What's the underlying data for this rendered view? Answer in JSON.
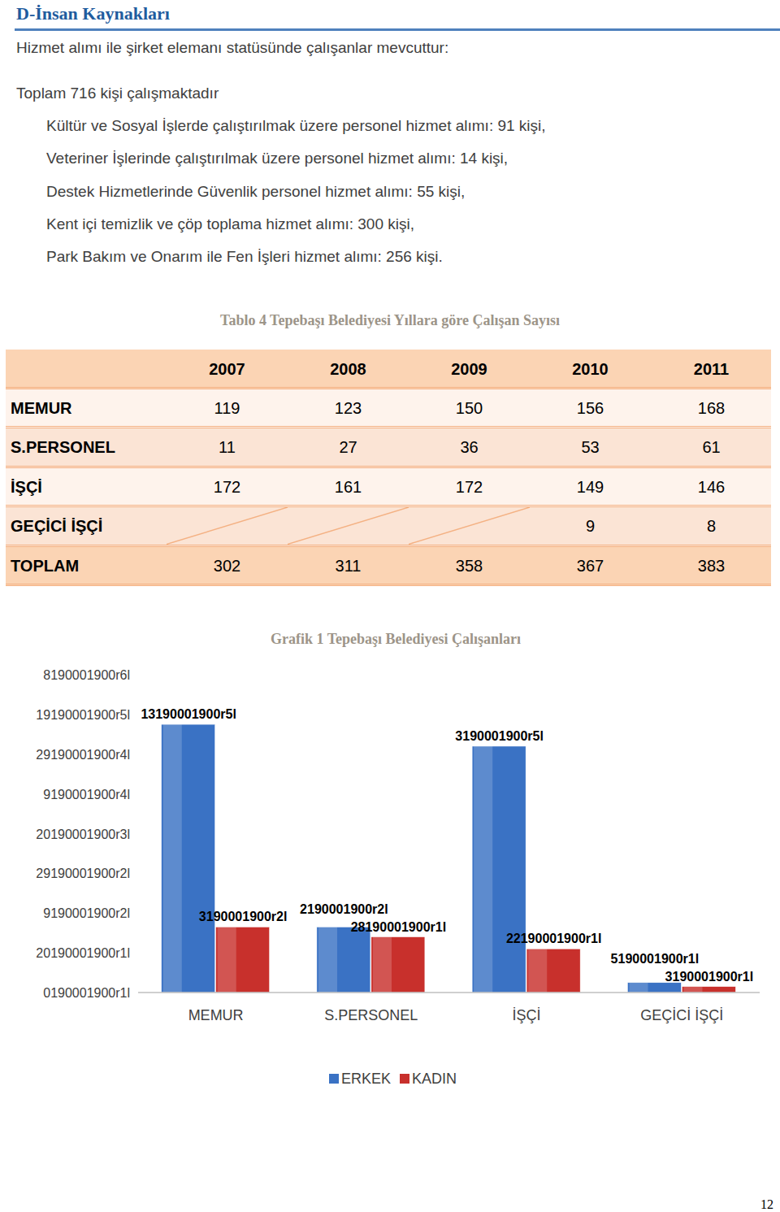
{
  "header": {
    "title": "D-İnsan Kaynakları"
  },
  "intro": [
    "Hizmet alımı ile şirket elemanı statüsünde çalışanlar mevcuttur:",
    "Toplam 716 kişi çalışmaktadır"
  ],
  "items": [
    "Kültür ve Sosyal İşlerde çalıştırılmak üzere personel hizmet alımı: 91 kişi,",
    "Veteriner İşlerinde çalıştırılmak üzere personel hizmet alımı: 14 kişi,",
    "Destek Hizmetlerinde Güvenlik personel hizmet alımı: 55 kişi,",
    "Kent içi temizlik ve çöp toplama hizmet alımı: 300 kişi,",
    "Park Bakım ve Onarım ile Fen İşleri hizmet alımı: 256 kişi."
  ],
  "table": {
    "caption": "Tablo 4 Tepebaşı Belediyesi Yıllara göre Çalışan Sayısı",
    "columns": [
      "2007",
      "2008",
      "2009",
      "2010",
      "2011"
    ],
    "rows": [
      {
        "label": "MEMUR",
        "values": [
          119,
          123,
          150,
          156,
          168
        ]
      },
      {
        "label": "S.PERSONEL",
        "values": [
          11,
          27,
          36,
          53,
          61
        ]
      },
      {
        "label": "İŞÇİ",
        "values": [
          172,
          161,
          172,
          149,
          146
        ]
      },
      {
        "label": "GEÇİCİ İŞÇİ",
        "values": [
          null,
          null,
          null,
          9,
          8
        ]
      },
      {
        "label": "TOPLAM",
        "values": [
          302,
          311,
          358,
          367,
          383
        ]
      }
    ]
  },
  "chart_data": {
    "type": "bar",
    "title": "Grafik 1 Tepebaşı Belediyesi Çalışanları",
    "categories": [
      "MEMUR",
      "S.PERSONEL",
      "İŞÇİ",
      "GEÇİCİ İŞÇİ"
    ],
    "series": [
      {
        "name": "ERKEK",
        "color": "#3a72c4",
        "values": [
          135,
          33,
          124,
          5
        ],
        "value_labels": [
          "13190001900r5l",
          "2190001900r2l",
          "3190001900r5l",
          "5190001900r1l"
        ]
      },
      {
        "name": "KADIN",
        "color": "#c8302c",
        "values": [
          33,
          28,
          22,
          3
        ],
        "value_labels": [
          "3190001900r2l",
          "28190001900r1l",
          "22190001900r1l",
          "3190001900r1l"
        ]
      }
    ],
    "ylim": [
      0,
      160
    ],
    "yticks": [
      {
        "value": 0,
        "label": "0190001900r1l"
      },
      {
        "value": 20,
        "label": "20190001900r1l"
      },
      {
        "value": 40,
        "label": "9190001900r2l"
      },
      {
        "value": 60,
        "label": "29190001900r2l"
      },
      {
        "value": 80,
        "label": "20190001900r3l"
      },
      {
        "value": 100,
        "label": "9190001900r4l"
      },
      {
        "value": 120,
        "label": "29190001900r4l"
      },
      {
        "value": 140,
        "label": "19190001900r5l"
      },
      {
        "value": 160,
        "label": "8190001900r6l"
      }
    ],
    "grid": false,
    "data_labels": true,
    "legend": "bottom"
  },
  "page_number": "12"
}
